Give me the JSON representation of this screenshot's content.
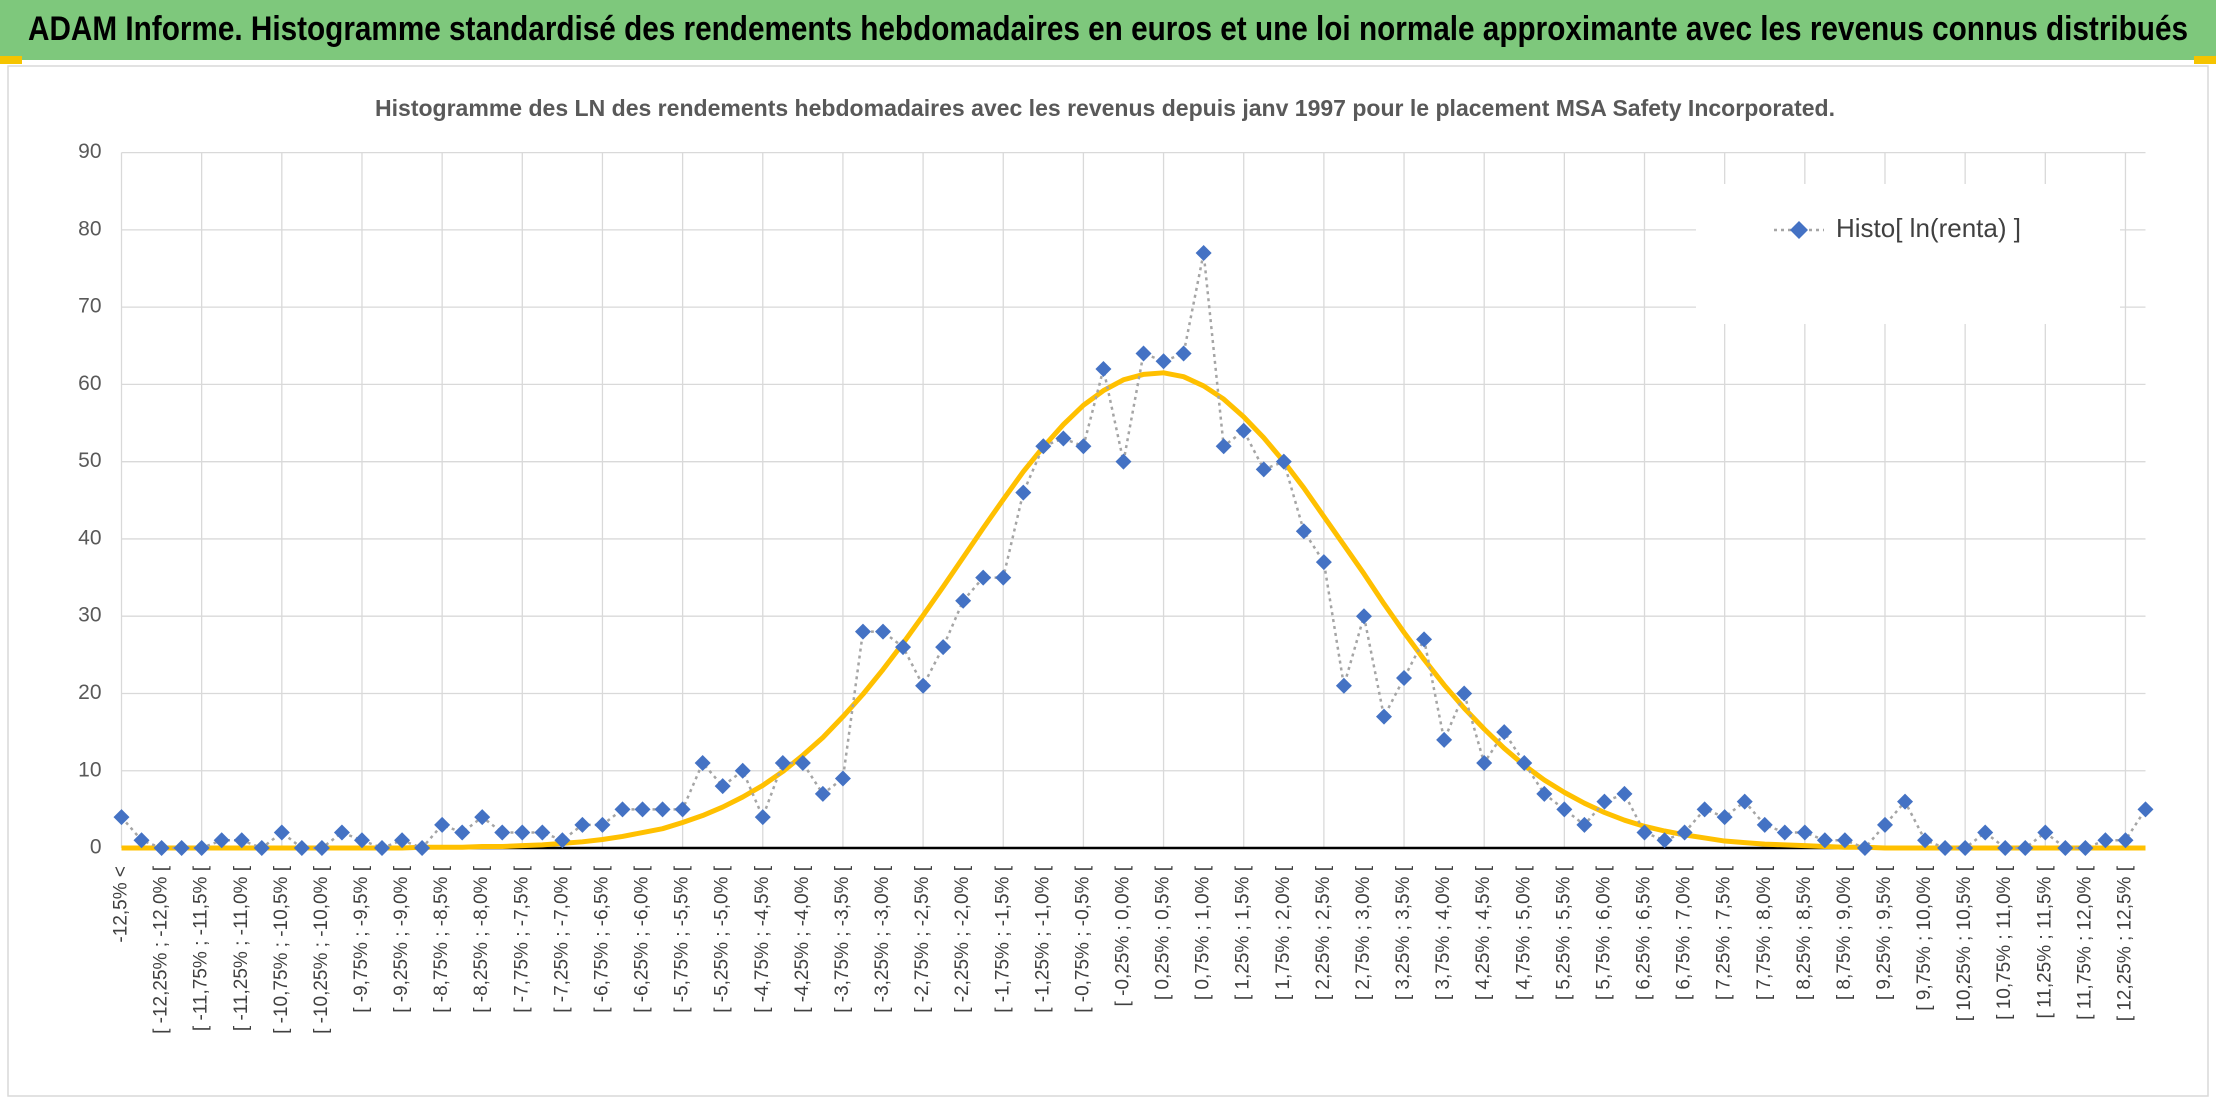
{
  "banner_title": "ADAM Informe. Histogramme standardisé des rendements hebdomadaires en euros et une loi normale approximante avec les revenus connus distribués",
  "chart_data": {
    "type": "line",
    "title": "Histogramme des LN des rendements hebdomadaires avec les revenus depuis janv 1997 pour le placement MSA Safety Incorporated.",
    "categories": [
      "-12,5% <",
      null,
      "[ -12,25% ; -12,0% [",
      null,
      "[ -11,75% ; -11,5% [",
      null,
      "[ -11,25% ; -11,0% [",
      null,
      "[ -10,75% ; -10,5% [",
      null,
      "[ -10,25% ; -10,0% [",
      null,
      "[ -9,75% ; -9,5% [",
      null,
      "[ -9,25% ; -9,0% [",
      null,
      "[ -8,75% ; -8,5% [",
      null,
      "[ -8,25% ; -8,0% [",
      null,
      "[ -7,75% ; -7,5% [",
      null,
      "[ -7,25% ; -7,0% [",
      null,
      "[ -6,75% ; -6,5% [",
      null,
      "[ -6,25% ; -6,0% [",
      null,
      "[ -5,75% ; -5,5% [",
      null,
      "[ -5,25% ; -5,0% [",
      null,
      "[ -4,75% ; -4,5% [",
      null,
      "[ -4,25% ; -4,0% [",
      null,
      "[ -3,75% ; -3,5% [",
      null,
      "[ -3,25% ; -3,0% [",
      null,
      "[ -2,75% ; -2,5% [",
      null,
      "[ -2,25% ; -2,0% [",
      null,
      "[ -1,75% ; -1,5% [",
      null,
      "[ -1,25% ; -1,0% [",
      null,
      "[ -0,75% ; -0,5% [",
      null,
      "[ -0,25% ; 0,0% [",
      null,
      "[ 0,25% ; 0,5% [",
      null,
      "[ 0,75% ; 1,0% [",
      null,
      "[ 1,25% ; 1,5% [",
      null,
      "[ 1,75% ; 2,0% [",
      null,
      "[ 2,25% ; 2,5% [",
      null,
      "[ 2,75% ; 3,0% [",
      null,
      "[ 3,25% ; 3,5% [",
      null,
      "[ 3,75% ; 4,0% [",
      null,
      "[ 4,25% ; 4,5% [",
      null,
      "[ 4,75% ; 5,0% [",
      null,
      "[ 5,25% ; 5,5% [",
      null,
      "[ 5,75% ; 6,0% [",
      null,
      "[ 6,25% ; 6,5% [",
      null,
      "[ 6,75% ; 7,0% [",
      null,
      "[ 7,25% ; 7,5% [",
      null,
      "[ 7,75% ; 8,0% [",
      null,
      "[ 8,25% ; 8,5% [",
      null,
      "[ 8,75% ; 9,0% [",
      null,
      "[ 9,25% ; 9,5% [",
      null,
      "[ 9,75% ; 10,0% [",
      null,
      "[ 10,25% ; 10,5% [",
      null,
      "[ 10,75% ; 11,0% [",
      null,
      "[ 11,25% ; 11,5% [",
      null,
      "[ 11,75% ; 12,0% [",
      null,
      "[ 12,25% ; 12,5% [",
      null
    ],
    "series": [
      {
        "name": "Histo[ ln(renta) ]",
        "color": "#4472c4",
        "line_color": "#a5a5a5",
        "line_style": "dotted",
        "marker": "diamond",
        "values": [
          4,
          1,
          0,
          0,
          0,
          1,
          1,
          0,
          2,
          0,
          0,
          2,
          1,
          0,
          1,
          0,
          3,
          2,
          4,
          2,
          2,
          2,
          1,
          3,
          3,
          5,
          5,
          5,
          5,
          11,
          8,
          10,
          4,
          11,
          11,
          7,
          9,
          28,
          28,
          26,
          21,
          26,
          32,
          35,
          35,
          46,
          52,
          53,
          52,
          62,
          50,
          64,
          63,
          64,
          77,
          52,
          54,
          49,
          50,
          41,
          37,
          21,
          30,
          17,
          22,
          27,
          14,
          20,
          11,
          15,
          11,
          7,
          5,
          3,
          6,
          7,
          2,
          1,
          2,
          5,
          4,
          6,
          3,
          2,
          2,
          1,
          1,
          0,
          3,
          6,
          1,
          0,
          0,
          2,
          0,
          0,
          2,
          0,
          0,
          1,
          1,
          5
        ]
      },
      {
        "color": "#ffc000",
        "line_style": "solid",
        "marker": "none",
        "values": [
          0,
          0,
          0,
          0,
          0,
          0,
          0,
          0,
          0,
          0,
          0,
          0,
          0,
          0,
          0,
          0.1,
          0.1,
          0.1,
          0.2,
          0.2,
          0.3,
          0.4,
          0.6,
          0.8,
          1.1,
          1.5,
          2.0,
          2.5,
          3.3,
          4.2,
          5.3,
          6.6,
          8.1,
          9.9,
          12.0,
          14.3,
          17.0,
          19.9,
          23.1,
          26.5,
          30.1,
          33.8,
          37.6,
          41.4,
          45.1,
          48.7,
          51.9,
          54.8,
          57.3,
          59.2,
          60.6,
          61.3,
          61.5,
          61.0,
          59.8,
          58.1,
          55.8,
          53.1,
          50.0,
          46.6,
          42.9,
          39.2,
          35.5,
          31.6,
          27.9,
          24.4,
          21.1,
          18.1,
          15.4,
          12.9,
          10.7,
          8.8,
          7.2,
          5.8,
          4.6,
          3.6,
          2.8,
          2.2,
          1.7,
          1.3,
          0.9,
          0.7,
          0.5,
          0.4,
          0.3,
          0.2,
          0.1,
          0.1,
          0,
          0,
          0,
          0,
          0,
          0,
          0,
          0,
          0,
          0,
          0,
          0,
          0,
          0
        ]
      }
    ],
    "ylim": [
      0,
      90
    ],
    "yticks": [
      0,
      10,
      20,
      30,
      40,
      50,
      60,
      70,
      80,
      90
    ],
    "grid": true,
    "legend": "top-right"
  }
}
